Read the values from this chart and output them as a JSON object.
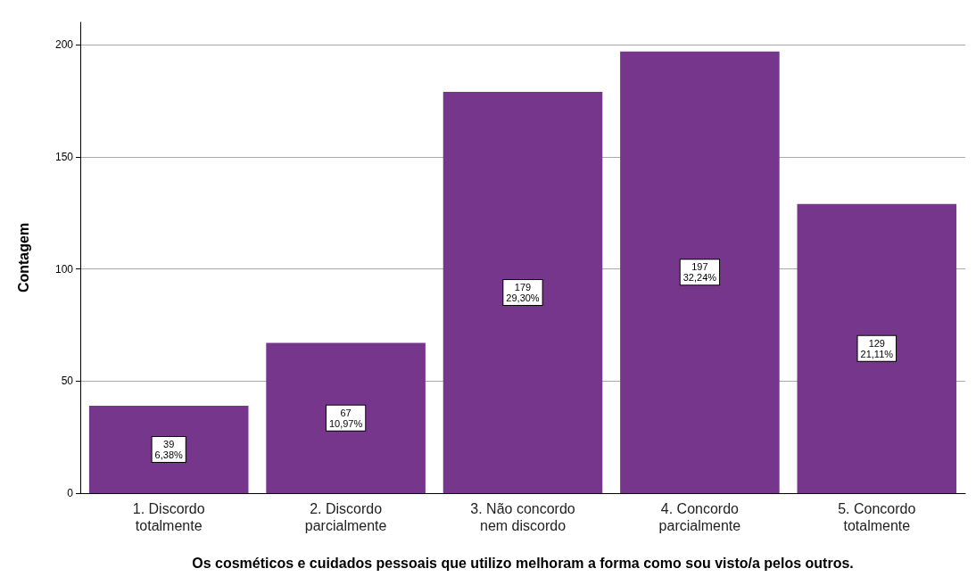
{
  "chart_data": {
    "type": "bar",
    "xlabel": "Os cosméticos e cuidados pessoais que utilizo melhoram a forma como sou visto/a pelos outros.",
    "ylabel": "Contagem",
    "categories": [
      "1. Discordo\ntotalmente",
      "2. Discordo\nparcialmente",
      "3. Não concordo\nnem discordo",
      "4. Concordo\nparcialmente",
      "5. Concordo\ntotalmente"
    ],
    "values": [
      39,
      67,
      179,
      197,
      129
    ],
    "value_labels": [
      "39\n6,38%",
      "67\n10,97%",
      "179\n29,30%",
      "197\n32,24%",
      "129\n21,11%"
    ],
    "color": "#76368c",
    "ylim": [
      0,
      210
    ],
    "yticks": [
      0,
      50,
      100,
      150,
      200
    ],
    "grid": "y"
  }
}
